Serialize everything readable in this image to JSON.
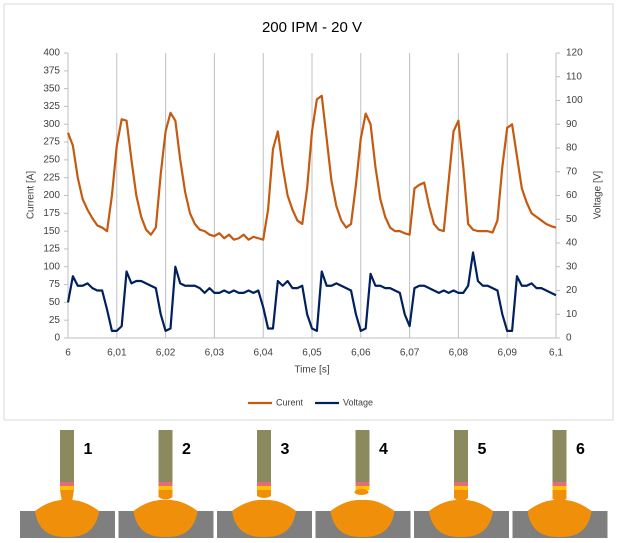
{
  "chart_data": {
    "type": "line",
    "title": "200 IPM - 20 V",
    "x_label": "Time [s]",
    "y_label": "Current [A]",
    "y2_label": "Voltage [V]",
    "xlim": [
      6,
      6.1
    ],
    "ylim": [
      0,
      400
    ],
    "y2lim": [
      0,
      120
    ],
    "grid": "x",
    "legend": "bottom",
    "xticks": [
      6,
      {
        "value": 6.01,
        "label": "6,01"
      },
      {
        "value": 6.02,
        "label": "6,02"
      },
      {
        "value": 6.03,
        "label": "6,03"
      },
      {
        "value": 6.04,
        "label": "6,04"
      },
      {
        "value": 6.05,
        "label": "6,05"
      },
      {
        "value": 6.06,
        "label": "6,06"
      },
      {
        "value": 6.07,
        "label": "6,07"
      },
      {
        "value": 6.08,
        "label": "6,08"
      },
      {
        "value": 6.09,
        "label": "6,09"
      },
      {
        "value": 6.1,
        "label": "6,1"
      }
    ],
    "yticks": [
      0,
      25,
      50,
      75,
      100,
      125,
      150,
      175,
      200,
      225,
      250,
      275,
      300,
      325,
      350,
      375,
      400
    ],
    "y2ticks": [
      0,
      10,
      20,
      30,
      40,
      50,
      60,
      70,
      80,
      90,
      100,
      110,
      120
    ],
    "x": [
      6,
      6.001,
      6.002,
      6.003,
      6.004,
      6.005,
      6.006,
      6.007,
      6.008,
      6.009,
      6.01,
      6.011,
      6.012,
      6.013,
      6.014,
      6.015,
      6.016,
      6.017,
      6.018,
      6.019,
      6.02,
      6.021,
      6.022,
      6.023,
      6.024,
      6.025,
      6.026,
      6.027,
      6.028,
      6.029,
      6.03,
      6.031,
      6.032,
      6.033,
      6.034,
      6.035,
      6.036,
      6.037,
      6.038,
      6.039,
      6.04,
      6.041,
      6.042,
      6.043,
      6.044,
      6.045,
      6.046,
      6.047,
      6.048,
      6.049,
      6.05,
      6.051,
      6.052,
      6.053,
      6.054,
      6.055,
      6.056,
      6.057,
      6.058,
      6.059,
      6.06,
      6.061,
      6.062,
      6.063,
      6.064,
      6.065,
      6.066,
      6.067,
      6.068,
      6.069,
      6.07,
      6.071,
      6.072,
      6.073,
      6.074,
      6.075,
      6.076,
      6.077,
      6.078,
      6.079,
      6.08,
      6.081,
      6.082,
      6.083,
      6.084,
      6.085,
      6.086,
      6.087,
      6.088,
      6.089,
      6.09,
      6.091,
      6.092,
      6.093,
      6.094,
      6.095,
      6.096,
      6.097,
      6.098,
      6.099,
      6.1
    ],
    "series": [
      {
        "name": "Curent",
        "color": "#c55a11",
        "values": [
          288,
          270,
          225,
          195,
          180,
          168,
          158,
          155,
          150,
          200,
          270,
          307,
          305,
          250,
          200,
          170,
          152,
          145,
          155,
          230,
          290,
          316,
          305,
          250,
          205,
          175,
          160,
          152,
          150,
          145,
          143,
          147,
          140,
          145,
          138,
          140,
          145,
          138,
          142,
          140,
          138,
          180,
          265,
          290,
          240,
          200,
          180,
          165,
          160,
          210,
          290,
          335,
          340,
          280,
          220,
          185,
          165,
          155,
          160,
          215,
          280,
          315,
          300,
          240,
          195,
          170,
          155,
          150,
          150,
          147,
          145,
          210,
          215,
          218,
          185,
          160,
          152,
          150,
          220,
          290,
          305,
          240,
          160,
          152,
          150,
          150,
          150,
          148,
          165,
          240,
          295,
          300,
          255,
          210,
          190,
          175,
          170,
          165,
          160,
          157,
          155
        ]
      },
      {
        "name": "Voltage",
        "color": "#002060",
        "axis": "y2",
        "values": [
          15,
          26,
          22,
          22,
          23,
          21,
          20,
          20,
          12,
          3,
          3,
          5,
          28,
          23,
          24,
          24,
          23,
          22,
          21,
          10,
          3,
          4,
          30,
          23,
          22,
          22,
          22,
          21,
          19,
          21,
          19,
          19,
          20,
          19,
          20,
          19,
          19,
          20,
          19,
          20,
          13,
          4,
          4,
          24,
          22,
          24,
          21,
          21,
          22,
          10,
          4,
          3,
          28,
          22,
          22,
          23,
          22,
          21,
          20,
          10,
          3,
          4,
          27,
          22,
          22,
          21,
          21,
          20,
          19,
          10,
          5,
          21,
          22,
          22,
          21,
          20,
          19,
          20,
          19,
          20,
          19,
          19,
          22,
          36,
          24,
          22,
          22,
          21,
          20,
          10,
          3,
          3,
          26,
          22,
          22,
          23,
          21,
          21,
          20,
          19,
          18
        ]
      }
    ]
  },
  "stages": [
    "1",
    "2",
    "3",
    "4",
    "5",
    "6"
  ]
}
